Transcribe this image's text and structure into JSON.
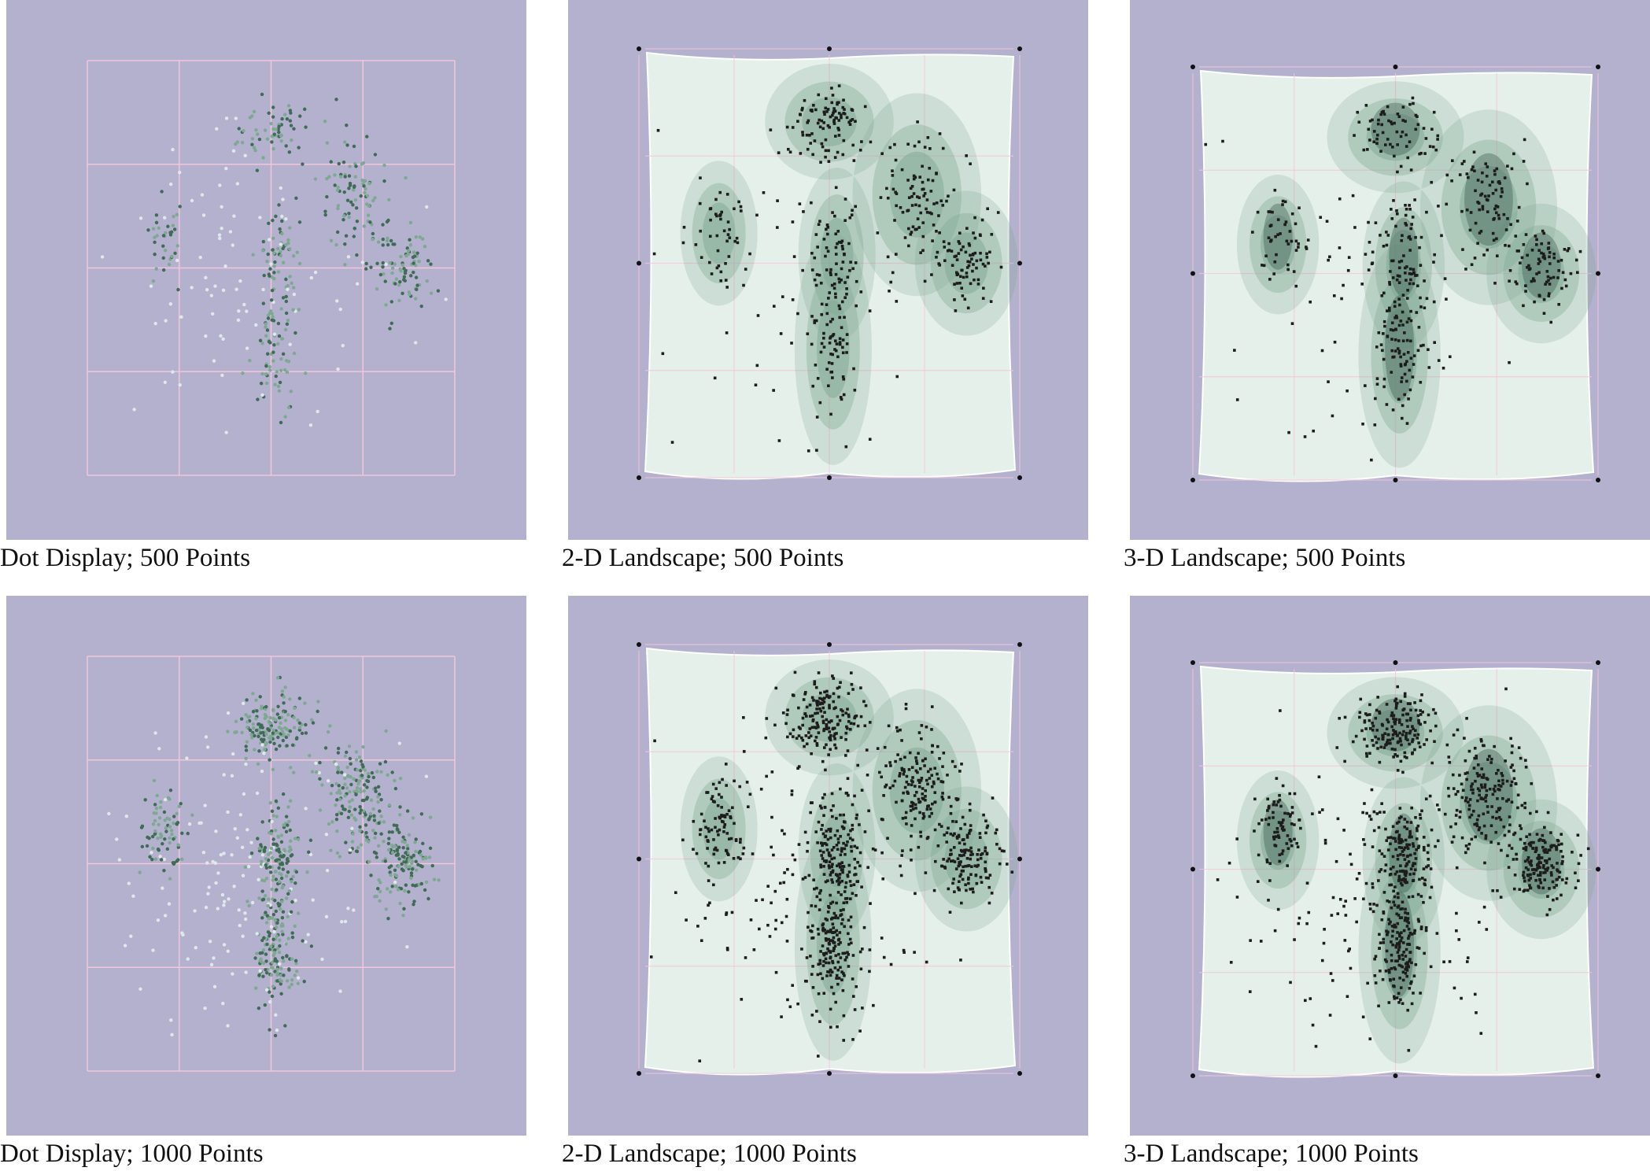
{
  "figure": {
    "background": "#ffffff",
    "panel_background": "#b3b1cd",
    "grid_color": "#f2c6dc",
    "surface_color": "#e6f0eb",
    "density_color": "#7fa893",
    "panels": [
      {
        "id": "dot-500",
        "caption": "Dot Display; 500 Points",
        "kind": "dot",
        "points": 500
      },
      {
        "id": "land2d-500",
        "caption": "2-D Landscape; 500 Points",
        "kind": "landscape-2d",
        "points": 500
      },
      {
        "id": "land3d-500",
        "caption": "3-D Landscape; 500 Points",
        "kind": "landscape-3d",
        "points": 500
      },
      {
        "id": "dot-1000",
        "caption": "Dot Display; 1000 Points",
        "kind": "dot",
        "points": 1000
      },
      {
        "id": "land2d-1000",
        "caption": "2-D Landscape; 1000 Points",
        "kind": "landscape-2d",
        "points": 1000
      },
      {
        "id": "land3d-1000",
        "caption": "3-D Landscape; 1000 Points",
        "kind": "landscape-3d",
        "points": 1000
      }
    ]
  }
}
